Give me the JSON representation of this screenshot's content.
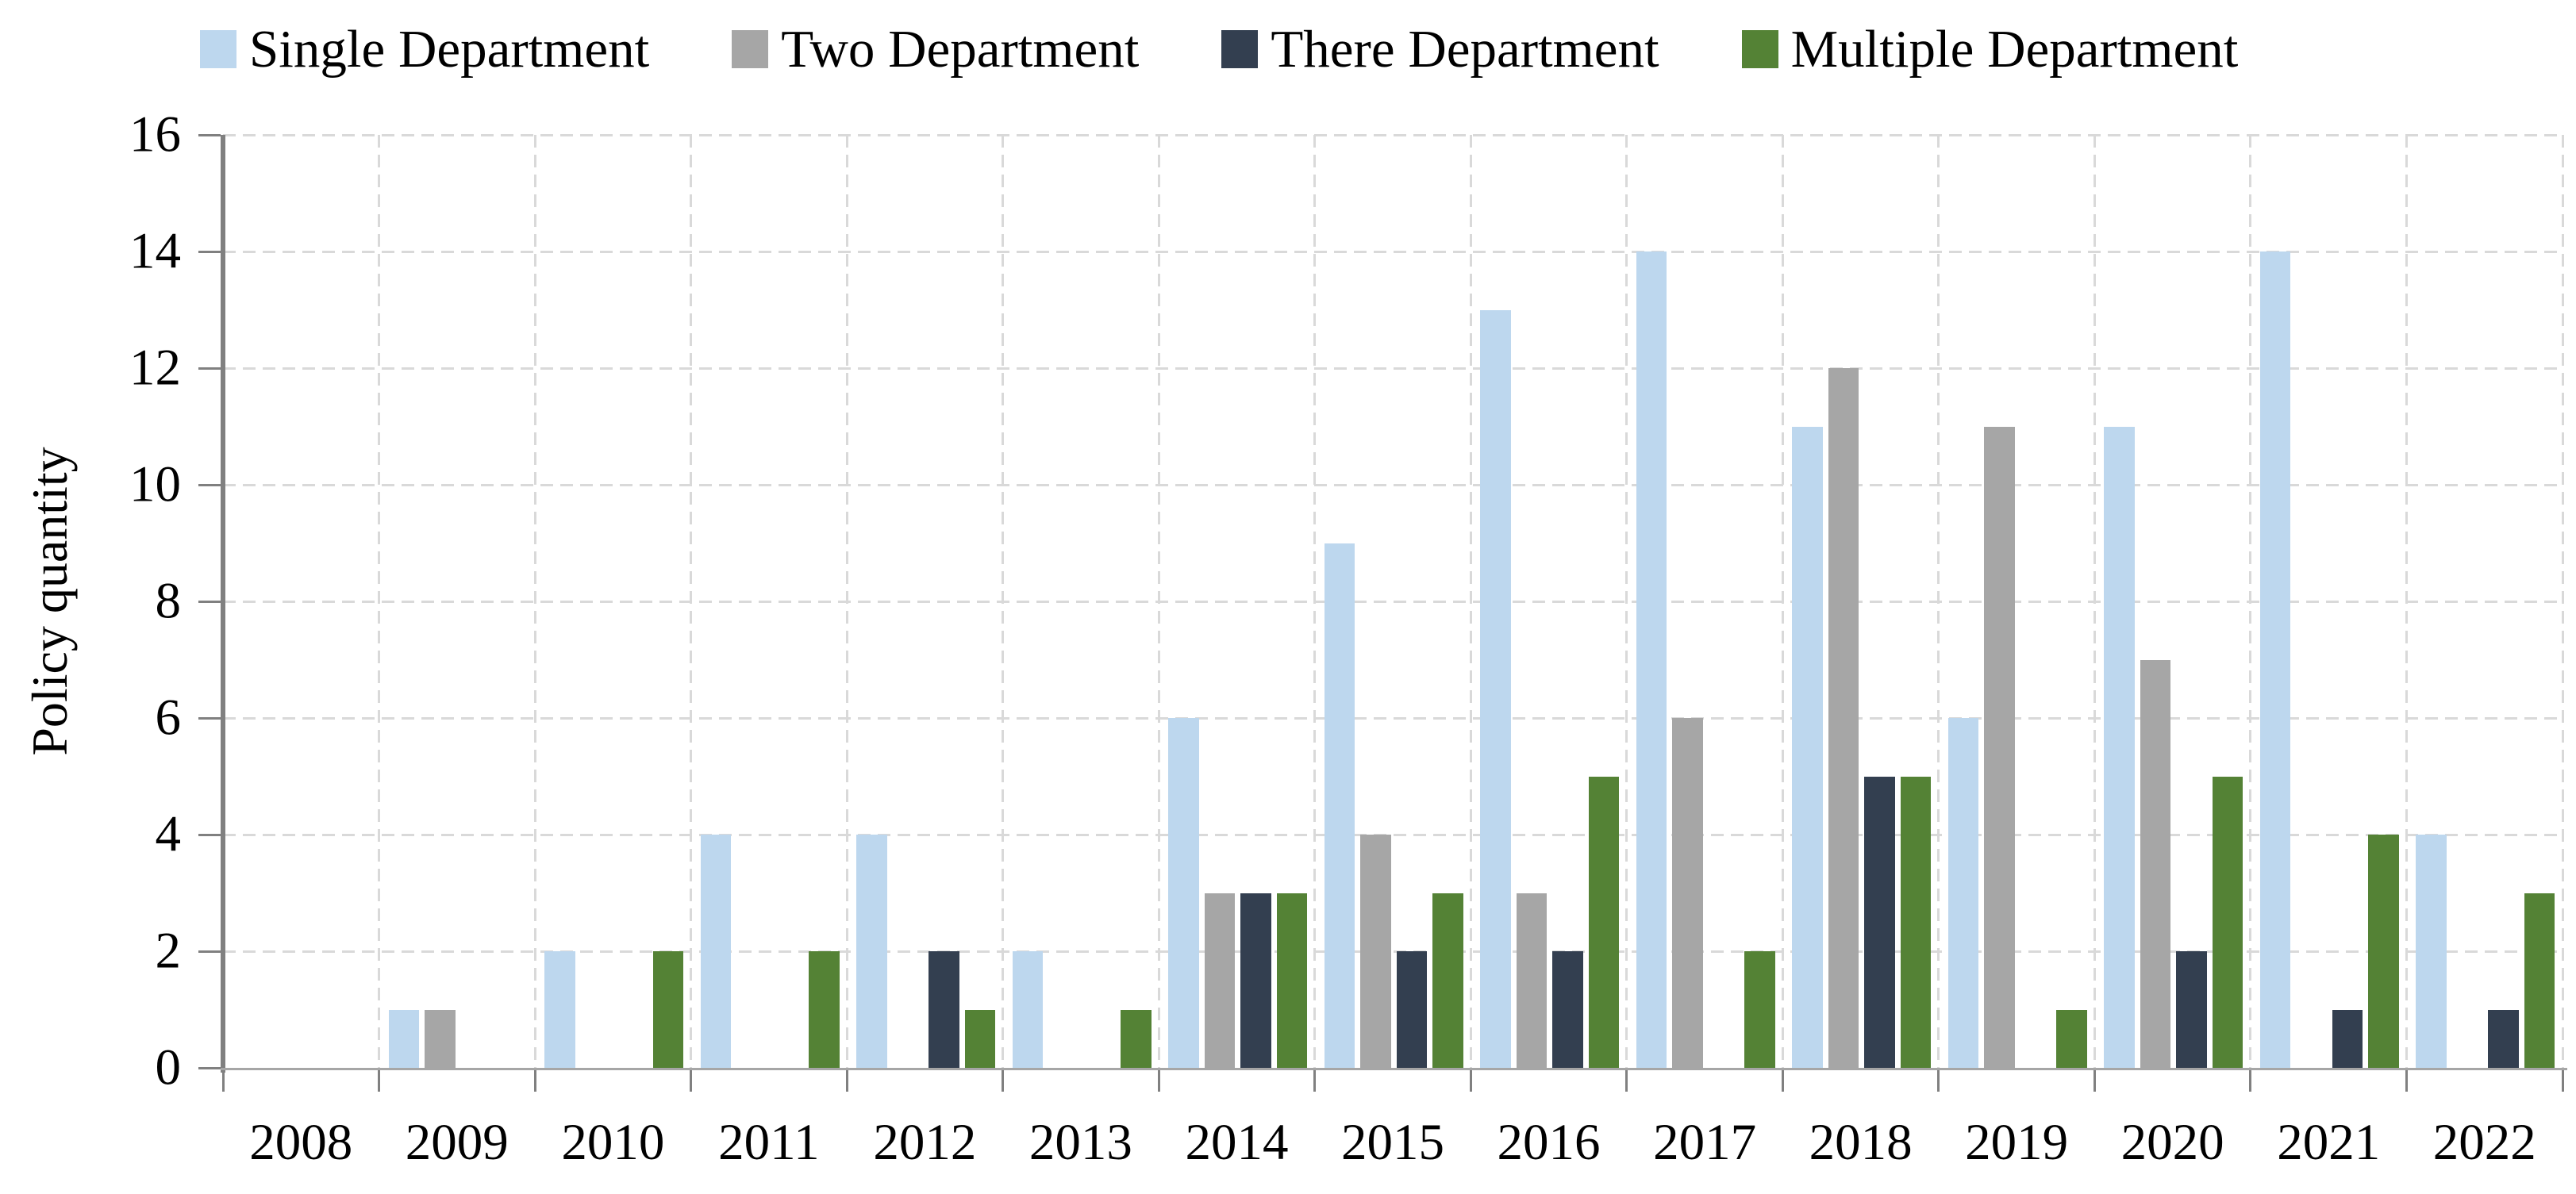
{
  "chart_data": {
    "type": "bar",
    "title": "",
    "xlabel": "",
    "ylabel": "Policy quantity",
    "ylim": [
      0,
      16
    ],
    "ytick_step": 2,
    "yticks": [
      0,
      2,
      4,
      6,
      8,
      10,
      12,
      14,
      16
    ],
    "grid": "dashed light-gray horizontal and vertical gridlines",
    "legend_position": "top",
    "categories": [
      "2008",
      "2009",
      "2010",
      "2011",
      "2012",
      "2013",
      "2014",
      "2015",
      "2016",
      "2017",
      "2018",
      "2019",
      "2020",
      "2021",
      "2022"
    ],
    "series": [
      {
        "name": "Single Department",
        "color": "#BDD7EE",
        "values": [
          0,
          1,
          2,
          4,
          4,
          2,
          6,
          9,
          13,
          14,
          11,
          6,
          11,
          14,
          4
        ]
      },
      {
        "name": "Two Department",
        "color": "#A6A6A6",
        "values": [
          0,
          1,
          0,
          0,
          0,
          0,
          3,
          4,
          3,
          6,
          12,
          11,
          7,
          0,
          0
        ]
      },
      {
        "name": "There Department",
        "color": "#333F50",
        "values": [
          0,
          0,
          0,
          0,
          2,
          0,
          3,
          2,
          2,
          0,
          5,
          0,
          2,
          1,
          1
        ]
      },
      {
        "name": "Multiple Department",
        "color": "#548235",
        "values": [
          0,
          0,
          2,
          2,
          1,
          1,
          3,
          3,
          5,
          2,
          5,
          1,
          5,
          4,
          3
        ]
      }
    ],
    "axis_colors": {
      "y_axis": "#808080",
      "x_axis": "#A6A6A6",
      "ticks": "#808080",
      "gridlines": "#D9D9D9"
    }
  }
}
